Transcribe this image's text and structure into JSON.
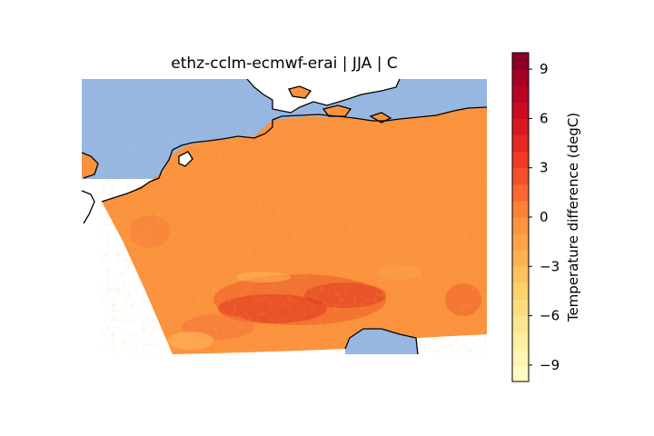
{
  "map": {
    "title": "ethz-cclm-ecmwf-erai | JJA | C",
    "colors": {
      "ocean": "#96b7e2",
      "field_base": "#fb923d",
      "field_warm": "#f26b2f",
      "field_hot": "#e0381f",
      "field_cool": "#fdb45a",
      "coast": "#000000"
    }
  },
  "colorbar": {
    "label": "Temperature difference (degC)",
    "range": [
      -10,
      10
    ],
    "ticks": [
      {
        "value": 9,
        "label": "9"
      },
      {
        "value": 6,
        "label": "6"
      },
      {
        "value": 3,
        "label": "3"
      },
      {
        "value": 0,
        "label": "0"
      },
      {
        "value": -3,
        "label": "−3"
      },
      {
        "value": -6,
        "label": "−6"
      },
      {
        "value": -9,
        "label": "−9"
      }
    ],
    "colors": [
      "#ffffcc",
      "#fff1a9",
      "#fee187",
      "#feca66",
      "#feab49",
      "#fd8c3c",
      "#fc5b2e",
      "#ed2e21",
      "#d41020",
      "#b00026",
      "#800026"
    ]
  }
}
